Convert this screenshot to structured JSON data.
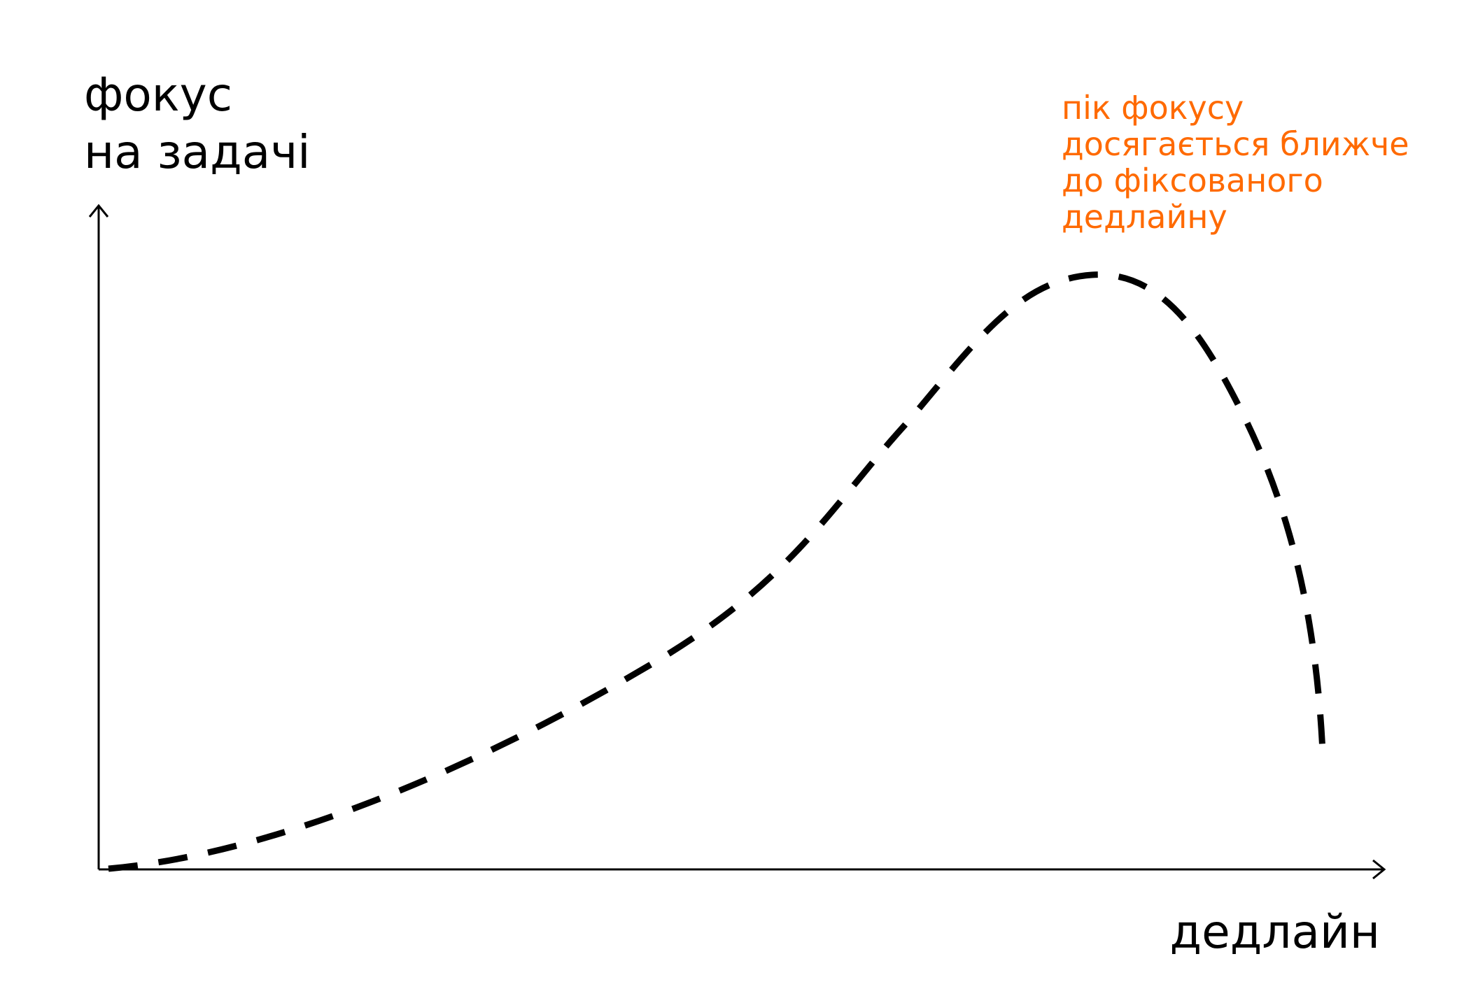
{
  "diagram": {
    "y_axis_label": [
      "фокус",
      "на задачі"
    ],
    "x_axis_label": "дедлайн",
    "annotation": {
      "lines": [
        "пік фокусу",
        "досягається ближче",
        "до фіксованого",
        "дедлайну"
      ],
      "color": "#ff6a00"
    },
    "curve": {
      "style": "dashed",
      "color": "#000000",
      "shape": "rises slowly from the origin, peaks near the deadline, then drops sharply"
    },
    "axis_color": "#000000"
  }
}
